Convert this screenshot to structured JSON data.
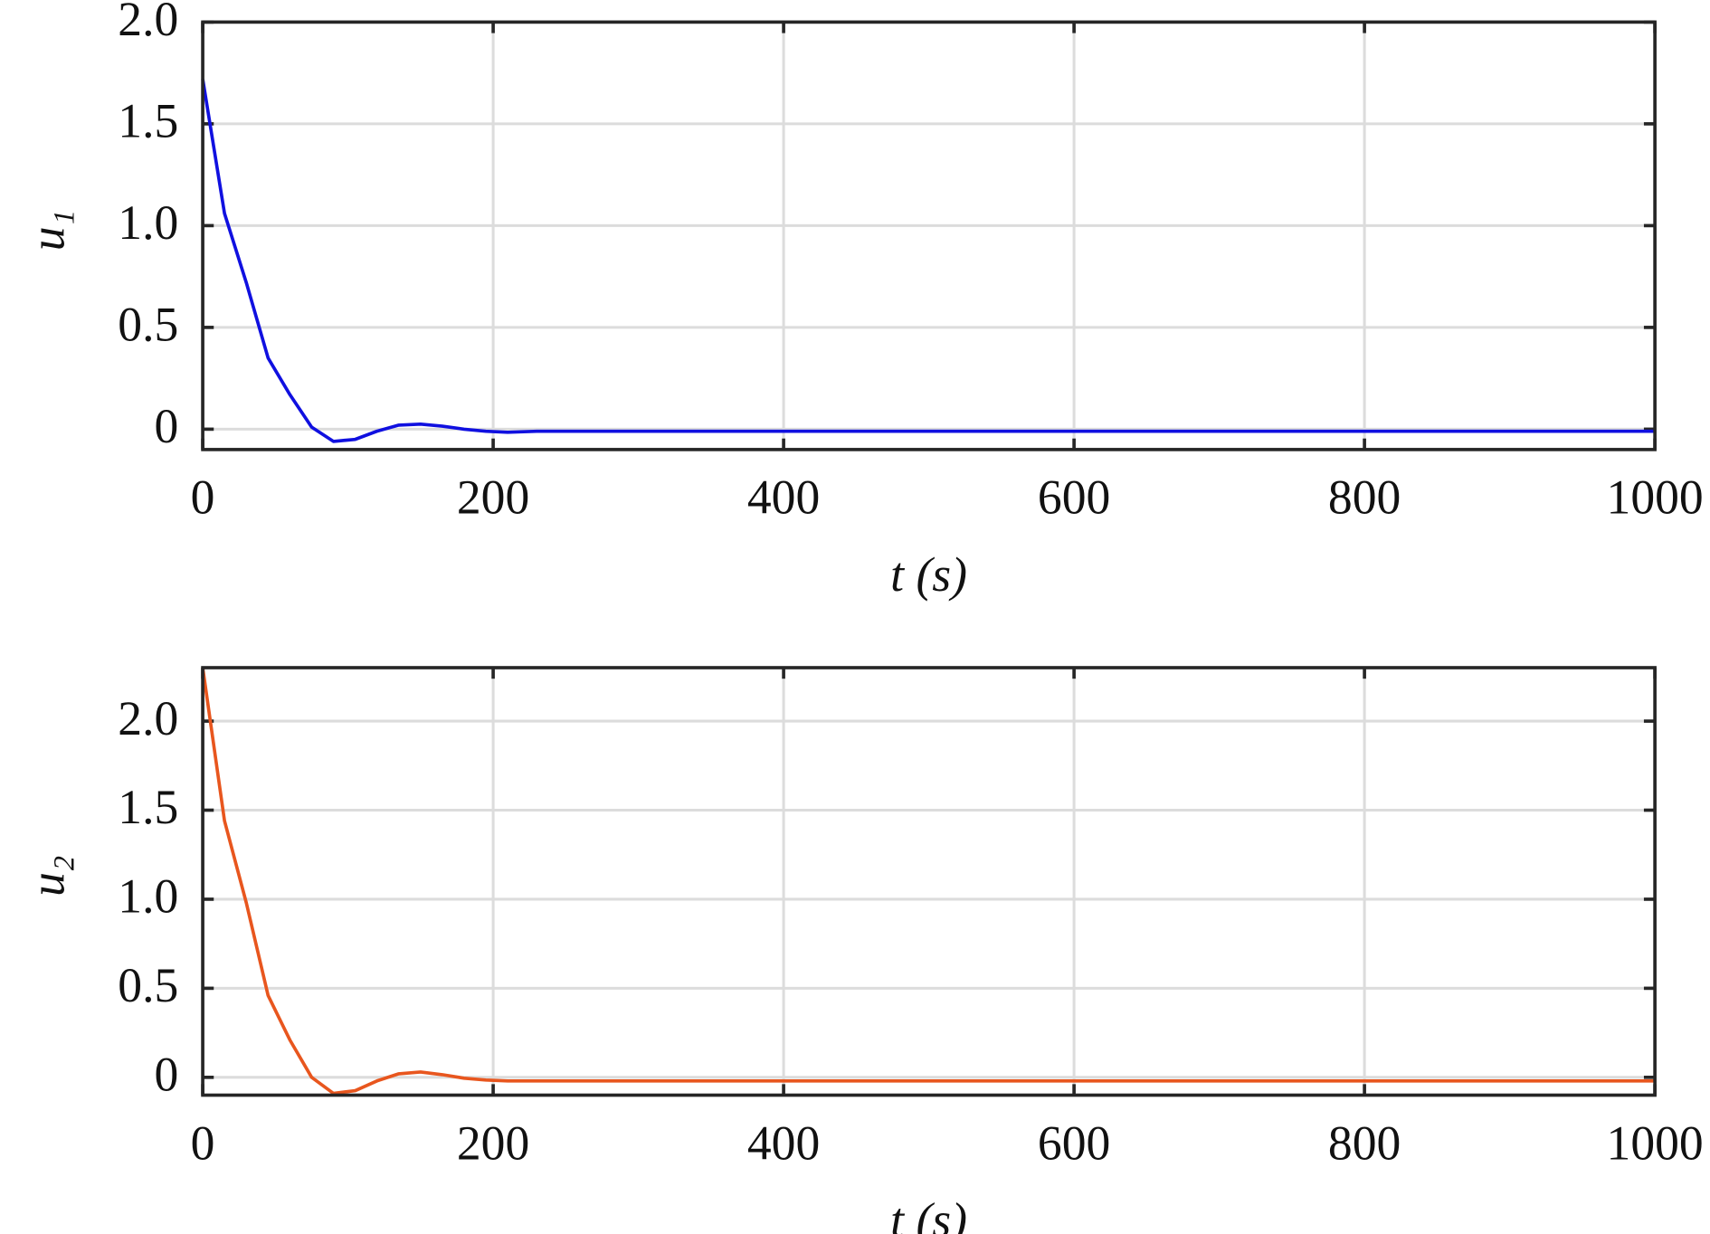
{
  "chart_data": [
    {
      "type": "line",
      "ylabel": "u₁",
      "xlabel": "t (s)",
      "x": [
        0,
        15,
        30,
        45,
        60,
        75,
        90,
        105,
        120,
        135,
        150,
        165,
        180,
        195,
        210,
        230,
        1000
      ],
      "series": [
        {
          "name": "u1",
          "color": "#1010e0",
          "values": [
            1.72,
            1.06,
            0.72,
            0.35,
            0.17,
            0.01,
            -0.06,
            -0.05,
            -0.01,
            0.02,
            0.025,
            0.015,
            0.0,
            -0.01,
            -0.015,
            -0.01,
            -0.01
          ]
        }
      ],
      "xlim": [
        0,
        1000
      ],
      "xticks": [
        0,
        200,
        400,
        600,
        800,
        1000
      ],
      "ylim": [
        -0.1,
        2.0
      ],
      "yticks": [
        0,
        0.5,
        {
          "value": 1,
          "label": "1.0"
        },
        1.5,
        {
          "value": 2,
          "label": "2.0"
        }
      ],
      "grid": true
    },
    {
      "type": "line",
      "ylabel": "u₂",
      "xlabel": "t (s)",
      "x": [
        0,
        15,
        30,
        45,
        60,
        75,
        90,
        105,
        120,
        135,
        150,
        165,
        180,
        195,
        210,
        230,
        1000
      ],
      "series": [
        {
          "name": "u2",
          "color": "#e8561e",
          "values": [
            2.3,
            1.44,
            0.98,
            0.46,
            0.21,
            0.0,
            -0.09,
            -0.075,
            -0.02,
            0.02,
            0.03,
            0.015,
            -0.005,
            -0.015,
            -0.02,
            -0.02,
            -0.02
          ]
        }
      ],
      "xlim": [
        0,
        1000
      ],
      "xticks": [
        0,
        200,
        400,
        600,
        800,
        1000
      ],
      "ylim": [
        -0.1,
        2.3
      ],
      "yticks": [
        0,
        0.5,
        {
          "value": 1,
          "label": "1.0"
        },
        1.5,
        {
          "value": 2,
          "label": "2.0"
        }
      ],
      "grid": true
    }
  ]
}
